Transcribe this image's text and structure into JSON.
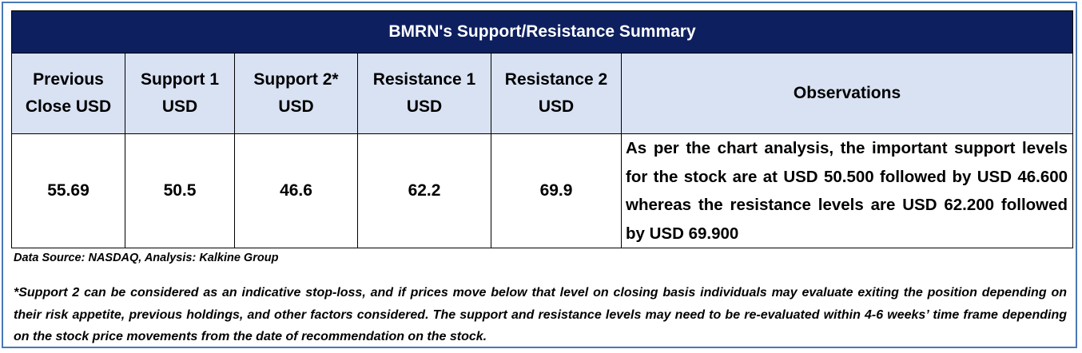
{
  "table": {
    "title": "BMRN's Support/Resistance Summary",
    "headers": {
      "previous_close": "Previous Close USD",
      "support_1": "Support 1 USD",
      "support_2": "Support 2* USD",
      "resistance_1": "Resistance 1 USD",
      "resistance_2": "Resistance 2 USD",
      "observations": "Observations"
    },
    "row": {
      "previous_close": "55.69",
      "support_1": "50.5",
      "support_2": "46.6",
      "resistance_1": "62.2",
      "resistance_2": "69.9",
      "observations": "As per the chart analysis, the important support levels for the stock are at USD 50.500 followed by USD 46.600 whereas the resistance levels are USD 62.200 followed by USD 69.900"
    }
  },
  "footer": {
    "source": "Data Source: NASDAQ, Analysis: Kalkine Group",
    "note": "*Support 2 can be considered as an indicative stop-loss, and if prices move below that level on closing basis individuals may evaluate exiting the position depending on their risk appetite, previous holdings, and other factors considered. The support and resistance levels may need to be re-evaluated within 4-6 weeks’ time frame depending on the stock price movements from the date of recommendation on the stock."
  },
  "colors": {
    "title_bg": "#0d1f5e",
    "header_bg": "#d9e2f3",
    "frame_border": "#4a78b8"
  }
}
